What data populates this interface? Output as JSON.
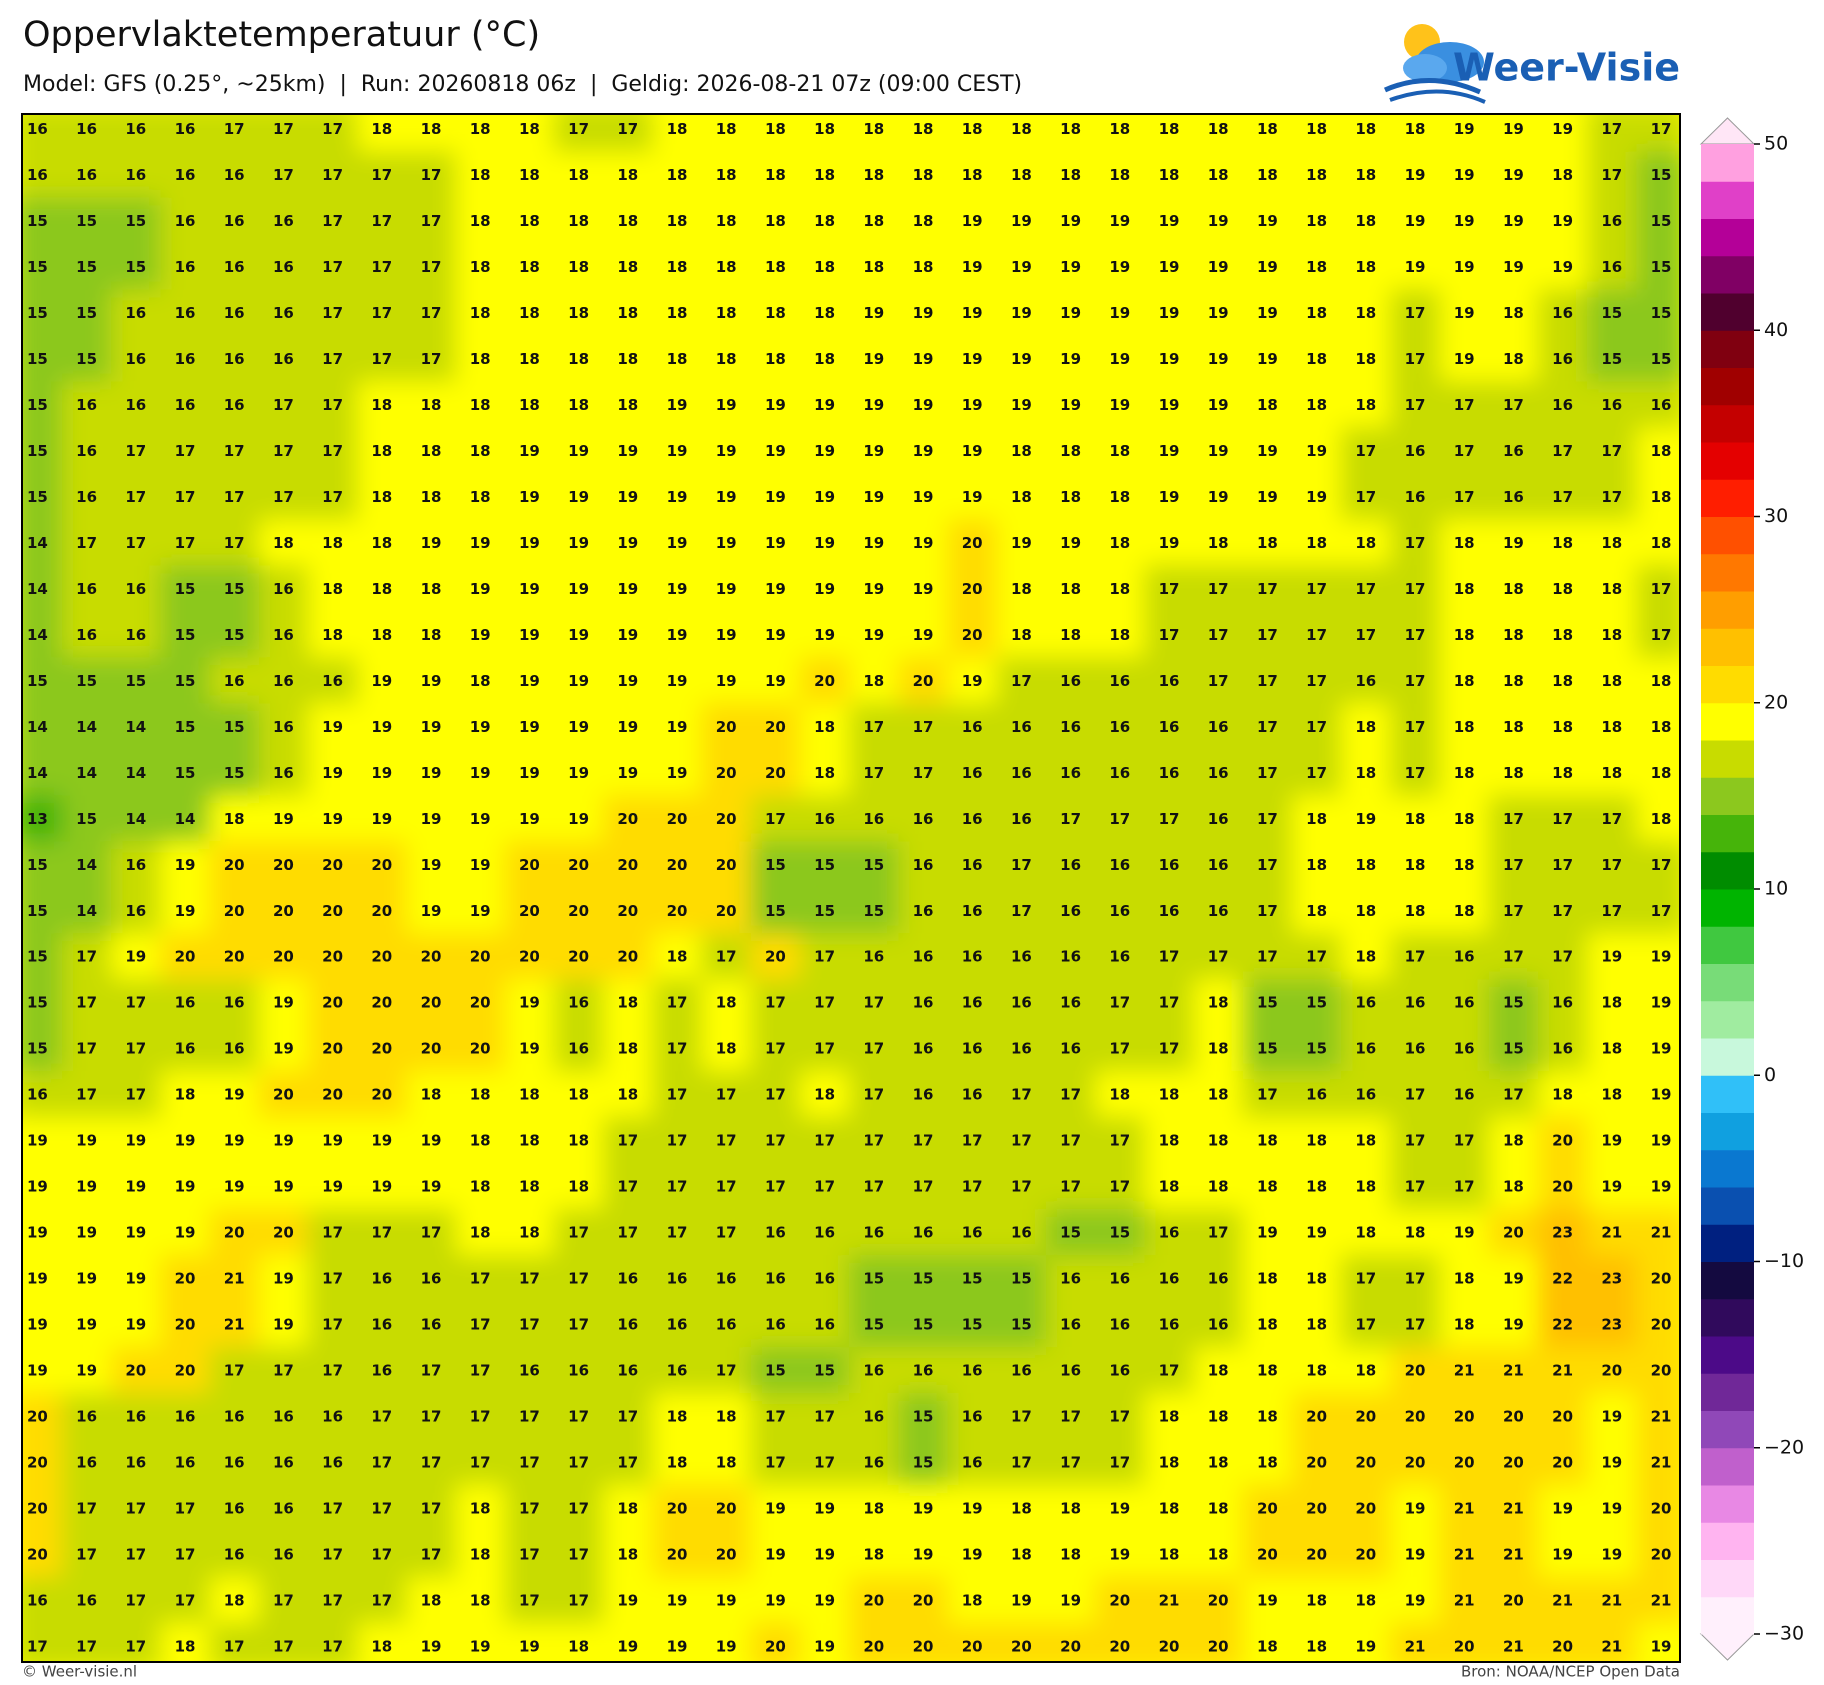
{
  "header": {
    "title": "Oppervlaktetemperatuur (°C)",
    "subtitle": "Model: GFS (0.25°, ~25km)  |  Run: 20260818 06z  |  Geldig: 2026-08-21 07z (09:00 CEST)"
  },
  "logo": "Weer-Visie",
  "map": {
    "values": [
      [
        16,
        16,
        16,
        16,
        17,
        17,
        17,
        18,
        18,
        18,
        18,
        17,
        17,
        18,
        18,
        18,
        18,
        18,
        18,
        18,
        18,
        18,
        18,
        18,
        18,
        18,
        18,
        18,
        18,
        19,
        19,
        19,
        17,
        17
      ],
      [
        16,
        16,
        16,
        16,
        16,
        17,
        17,
        17,
        17,
        18,
        18,
        18,
        18,
        18,
        18,
        18,
        18,
        18,
        18,
        18,
        18,
        18,
        18,
        18,
        18,
        18,
        18,
        18,
        19,
        19,
        19,
        18,
        17,
        15
      ],
      [
        15,
        15,
        15,
        16,
        16,
        16,
        17,
        17,
        17,
        18,
        18,
        18,
        18,
        18,
        18,
        18,
        18,
        18,
        18,
        19,
        19,
        19,
        19,
        19,
        19,
        19,
        18,
        18,
        19,
        19,
        19,
        19,
        16,
        15
      ],
      [
        15,
        15,
        15,
        16,
        16,
        16,
        17,
        17,
        17,
        18,
        18,
        18,
        18,
        18,
        18,
        18,
        18,
        18,
        18,
        19,
        19,
        19,
        19,
        19,
        19,
        19,
        18,
        18,
        19,
        19,
        19,
        19,
        16,
        15
      ],
      [
        15,
        15,
        16,
        16,
        16,
        16,
        17,
        17,
        17,
        18,
        18,
        18,
        18,
        18,
        18,
        18,
        18,
        19,
        19,
        19,
        19,
        19,
        19,
        19,
        19,
        19,
        18,
        18,
        17,
        19,
        18,
        16,
        15,
        15
      ],
      [
        15,
        15,
        16,
        16,
        16,
        16,
        17,
        17,
        17,
        18,
        18,
        18,
        18,
        18,
        18,
        18,
        18,
        19,
        19,
        19,
        19,
        19,
        19,
        19,
        19,
        19,
        18,
        18,
        17,
        19,
        18,
        16,
        15,
        15
      ],
      [
        15,
        16,
        16,
        16,
        16,
        17,
        17,
        18,
        18,
        18,
        18,
        18,
        18,
        19,
        19,
        19,
        19,
        19,
        19,
        19,
        19,
        19,
        19,
        19,
        19,
        18,
        18,
        18,
        17,
        17,
        17,
        16,
        16,
        16
      ],
      [
        15,
        16,
        17,
        17,
        17,
        17,
        17,
        18,
        18,
        18,
        19,
        19,
        19,
        19,
        19,
        19,
        19,
        19,
        19,
        19,
        18,
        18,
        18,
        19,
        19,
        19,
        19,
        17,
        16,
        17,
        16,
        17,
        17,
        18
      ],
      [
        15,
        16,
        17,
        17,
        17,
        17,
        17,
        18,
        18,
        18,
        19,
        19,
        19,
        19,
        19,
        19,
        19,
        19,
        19,
        19,
        18,
        18,
        18,
        19,
        19,
        19,
        19,
        17,
        16,
        17,
        16,
        17,
        17,
        18
      ],
      [
        14,
        17,
        17,
        17,
        17,
        18,
        18,
        18,
        19,
        19,
        19,
        19,
        19,
        19,
        19,
        19,
        19,
        19,
        19,
        20,
        19,
        19,
        18,
        19,
        18,
        18,
        18,
        18,
        17,
        18,
        19,
        18,
        18,
        18
      ],
      [
        14,
        16,
        16,
        15,
        15,
        16,
        18,
        18,
        18,
        19,
        19,
        19,
        19,
        19,
        19,
        19,
        19,
        19,
        19,
        20,
        18,
        18,
        18,
        17,
        17,
        17,
        17,
        17,
        17,
        18,
        18,
        18,
        18,
        17
      ],
      [
        14,
        16,
        16,
        15,
        15,
        16,
        18,
        18,
        18,
        19,
        19,
        19,
        19,
        19,
        19,
        19,
        19,
        19,
        19,
        20,
        18,
        18,
        18,
        17,
        17,
        17,
        17,
        17,
        17,
        18,
        18,
        18,
        18,
        17
      ],
      [
        15,
        15,
        15,
        15,
        16,
        16,
        16,
        19,
        19,
        18,
        19,
        19,
        19,
        19,
        19,
        19,
        20,
        18,
        20,
        19,
        17,
        16,
        16,
        16,
        17,
        17,
        17,
        16,
        17,
        18,
        18,
        18,
        18,
        18
      ],
      [
        14,
        14,
        14,
        15,
        15,
        16,
        19,
        19,
        19,
        19,
        19,
        19,
        19,
        19,
        20,
        20,
        18,
        17,
        17,
        16,
        16,
        16,
        16,
        16,
        16,
        17,
        17,
        18,
        17,
        18,
        18,
        18,
        18,
        18
      ],
      [
        14,
        14,
        14,
        15,
        15,
        16,
        19,
        19,
        19,
        19,
        19,
        19,
        19,
        19,
        20,
        20,
        18,
        17,
        17,
        16,
        16,
        16,
        16,
        16,
        16,
        17,
        17,
        18,
        17,
        18,
        18,
        18,
        18,
        18
      ],
      [
        13,
        15,
        14,
        14,
        18,
        19,
        19,
        19,
        19,
        19,
        19,
        19,
        20,
        20,
        20,
        17,
        16,
        16,
        16,
        16,
        16,
        17,
        17,
        17,
        16,
        17,
        18,
        19,
        18,
        18,
        17,
        17,
        17,
        18
      ],
      [
        15,
        14,
        16,
        19,
        20,
        20,
        20,
        20,
        19,
        19,
        20,
        20,
        20,
        20,
        20,
        15,
        15,
        15,
        16,
        16,
        17,
        16,
        16,
        16,
        16,
        17,
        18,
        18,
        18,
        18,
        17,
        17,
        17,
        17
      ],
      [
        15,
        14,
        16,
        19,
        20,
        20,
        20,
        20,
        19,
        19,
        20,
        20,
        20,
        20,
        20,
        15,
        15,
        15,
        16,
        16,
        17,
        16,
        16,
        16,
        16,
        17,
        18,
        18,
        18,
        18,
        17,
        17,
        17,
        17
      ],
      [
        15,
        17,
        19,
        20,
        20,
        20,
        20,
        20,
        20,
        20,
        20,
        20,
        20,
        18,
        17,
        20,
        17,
        16,
        16,
        16,
        16,
        16,
        16,
        17,
        17,
        17,
        17,
        18,
        17,
        16,
        17,
        17,
        19,
        19
      ],
      [
        15,
        17,
        17,
        16,
        16,
        19,
        20,
        20,
        20,
        20,
        19,
        16,
        18,
        17,
        18,
        17,
        17,
        17,
        16,
        16,
        16,
        16,
        17,
        17,
        18,
        15,
        15,
        16,
        16,
        16,
        15,
        16,
        18,
        19
      ],
      [
        15,
        17,
        17,
        16,
        16,
        19,
        20,
        20,
        20,
        20,
        19,
        16,
        18,
        17,
        18,
        17,
        17,
        17,
        16,
        16,
        16,
        16,
        17,
        17,
        18,
        15,
        15,
        16,
        16,
        16,
        15,
        16,
        18,
        19
      ],
      [
        16,
        17,
        17,
        18,
        19,
        20,
        20,
        20,
        18,
        18,
        18,
        18,
        18,
        17,
        17,
        17,
        18,
        17,
        16,
        16,
        17,
        17,
        18,
        18,
        18,
        17,
        16,
        16,
        17,
        16,
        17,
        18,
        18,
        19
      ],
      [
        19,
        19,
        19,
        19,
        19,
        19,
        19,
        19,
        19,
        18,
        18,
        18,
        17,
        17,
        17,
        17,
        17,
        17,
        17,
        17,
        17,
        17,
        17,
        18,
        18,
        18,
        18,
        18,
        17,
        17,
        18,
        20,
        19,
        19
      ],
      [
        19,
        19,
        19,
        19,
        19,
        19,
        19,
        19,
        19,
        18,
        18,
        18,
        17,
        17,
        17,
        17,
        17,
        17,
        17,
        17,
        17,
        17,
        17,
        18,
        18,
        18,
        18,
        18,
        17,
        17,
        18,
        20,
        19,
        19
      ],
      [
        19,
        19,
        19,
        19,
        20,
        20,
        17,
        17,
        17,
        18,
        18,
        17,
        17,
        17,
        17,
        16,
        16,
        16,
        16,
        16,
        16,
        15,
        15,
        16,
        17,
        19,
        19,
        18,
        18,
        19,
        20,
        23,
        21,
        21
      ],
      [
        19,
        19,
        19,
        20,
        21,
        19,
        17,
        16,
        16,
        17,
        17,
        17,
        16,
        16,
        16,
        16,
        16,
        15,
        15,
        15,
        15,
        16,
        16,
        16,
        16,
        18,
        18,
        17,
        17,
        18,
        19,
        22,
        23,
        20
      ],
      [
        19,
        19,
        19,
        20,
        21,
        19,
        17,
        16,
        16,
        17,
        17,
        17,
        16,
        16,
        16,
        16,
        16,
        15,
        15,
        15,
        15,
        16,
        16,
        16,
        16,
        18,
        18,
        17,
        17,
        18,
        19,
        22,
        23,
        20
      ],
      [
        19,
        19,
        20,
        20,
        17,
        17,
        17,
        16,
        17,
        17,
        16,
        16,
        16,
        16,
        17,
        15,
        15,
        16,
        16,
        16,
        16,
        16,
        16,
        17,
        18,
        18,
        18,
        18,
        20,
        21,
        21,
        21,
        20,
        20
      ],
      [
        20,
        16,
        16,
        16,
        16,
        16,
        16,
        17,
        17,
        17,
        17,
        17,
        17,
        18,
        18,
        17,
        17,
        16,
        15,
        16,
        17,
        17,
        17,
        18,
        18,
        18,
        20,
        20,
        20,
        20,
        20,
        20,
        19,
        21
      ],
      [
        20,
        16,
        16,
        16,
        16,
        16,
        16,
        17,
        17,
        17,
        17,
        17,
        17,
        18,
        18,
        17,
        17,
        16,
        15,
        16,
        17,
        17,
        17,
        18,
        18,
        18,
        20,
        20,
        20,
        20,
        20,
        20,
        19,
        21
      ],
      [
        20,
        17,
        17,
        17,
        16,
        16,
        17,
        17,
        17,
        18,
        17,
        17,
        18,
        20,
        20,
        19,
        19,
        18,
        19,
        19,
        18,
        18,
        19,
        18,
        18,
        20,
        20,
        20,
        19,
        21,
        21,
        19,
        19,
        20
      ],
      [
        20,
        17,
        17,
        17,
        16,
        16,
        17,
        17,
        17,
        18,
        17,
        17,
        18,
        20,
        20,
        19,
        19,
        18,
        19,
        19,
        18,
        18,
        19,
        18,
        18,
        20,
        20,
        20,
        19,
        21,
        21,
        19,
        19,
        20
      ],
      [
        16,
        16,
        17,
        17,
        18,
        17,
        17,
        17,
        18,
        18,
        17,
        17,
        19,
        19,
        19,
        19,
        19,
        20,
        20,
        18,
        19,
        19,
        20,
        21,
        20,
        19,
        18,
        18,
        19,
        21,
        20,
        21,
        21,
        21
      ],
      [
        17,
        17,
        17,
        18,
        17,
        17,
        17,
        18,
        19,
        19,
        19,
        18,
        19,
        19,
        19,
        20,
        19,
        20,
        20,
        20,
        20,
        20,
        20,
        20,
        20,
        18,
        18,
        19,
        21,
        20,
        21,
        20,
        21,
        19
      ]
    ]
  },
  "colorbar": {
    "lim": [
      -30,
      50
    ],
    "ticks": [
      {
        "value": -30,
        "label": "−30"
      },
      {
        "value": -20,
        "label": "−20"
      },
      {
        "value": -10,
        "label": "−10"
      },
      0,
      10,
      20,
      30,
      40,
      50
    ],
    "colors": [
      "#fff0fc",
      "#ffd8f8",
      "#ffb4f0",
      "#e888e4",
      "#c060cc",
      "#9048b8",
      "#702898",
      "#4c0a88",
      "#300a5c",
      "#140a40",
      "#002080",
      "#0a50b0",
      "#0a78d0",
      "#10a0e0",
      "#30c0f8",
      "#c8f8dc",
      "#a0eca0",
      "#78dc78",
      "#40c840",
      "#00b400",
      "#008c00",
      "#46b40a",
      "#8cc81e",
      "#c8dc00",
      "#ffff00",
      "#ffdc00",
      "#ffc000",
      "#ff9e00",
      "#ff7800",
      "#ff5000",
      "#ff1e00",
      "#e40000",
      "#c40000",
      "#a00000",
      "#800010",
      "#50002e",
      "#800064",
      "#b40098",
      "#e040c8",
      "#ffa0e0"
    ]
  },
  "footer": {
    "left": "© Weer-visie.nl",
    "right": "Bron: NOAA/NCEP Open Data"
  }
}
